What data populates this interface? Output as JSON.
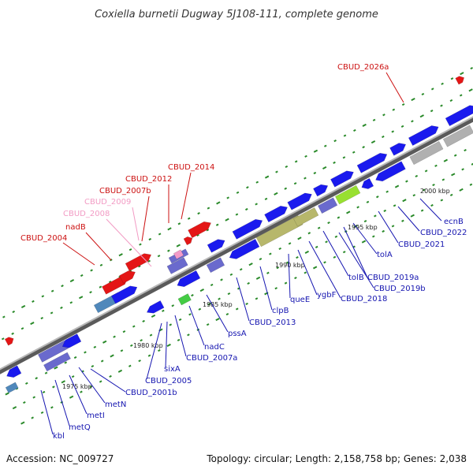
{
  "title": "Coxiella burnetii Dugway 5J108-111, complete genome",
  "footer": {
    "accession": "Accession: NC_009727",
    "summary": "Topology: circular; Length: 2,158,758 bp; Genes: 2,038"
  },
  "colors": {
    "backbone": "#8a8a8a",
    "cds_blue": "#1a1aee",
    "cds_slate": "#6a6acd",
    "cds_olive": "#b7b76b",
    "cds_grey": "#b0b0b0",
    "cds_pink": "#e88a8a",
    "cds_lime": "#98e030",
    "cds_steel": "#5088bb",
    "red_gene": "#e41616",
    "pink_gene": "#f39bc8",
    "green_marker": "#2a8a2a",
    "label_blue": "#1515b0",
    "label_red": "#cc1111",
    "label_pink": "#f29bc4"
  },
  "ticks": [
    "1975 kbp",
    "1980 kbp",
    "1985 kbp",
    "1990 kbp",
    "1995 kbp",
    "2000 kbp"
  ],
  "labels_top": [
    {
      "text": "CBUD_2026a",
      "color": "red"
    },
    {
      "text": "CBUD_2014",
      "color": "red"
    },
    {
      "text": "CBUD_2012",
      "color": "red"
    },
    {
      "text": "CBUD_2007b",
      "color": "red"
    },
    {
      "text": "CBUD_2009",
      "color": "pink"
    },
    {
      "text": "CBUD_2008",
      "color": "pink"
    },
    {
      "text": "nadB",
      "color": "red"
    },
    {
      "text": "CBUD_2004",
      "color": "red"
    }
  ],
  "labels_bottom": [
    "ecnB",
    "CBUD_2022",
    "CBUD_2021",
    "tolA",
    "CBUD_2019a",
    "CBUD_2019b",
    "tolB",
    "CBUD_2018",
    "ygbF",
    "queE",
    "clpB",
    "CBUD_2013",
    "pssA",
    "nadC",
    "CBUD_2007a",
    "CBUD_2005",
    "sixA",
    "CBUD_2001b",
    "metN",
    "metI",
    "metQ",
    "kbl"
  ]
}
